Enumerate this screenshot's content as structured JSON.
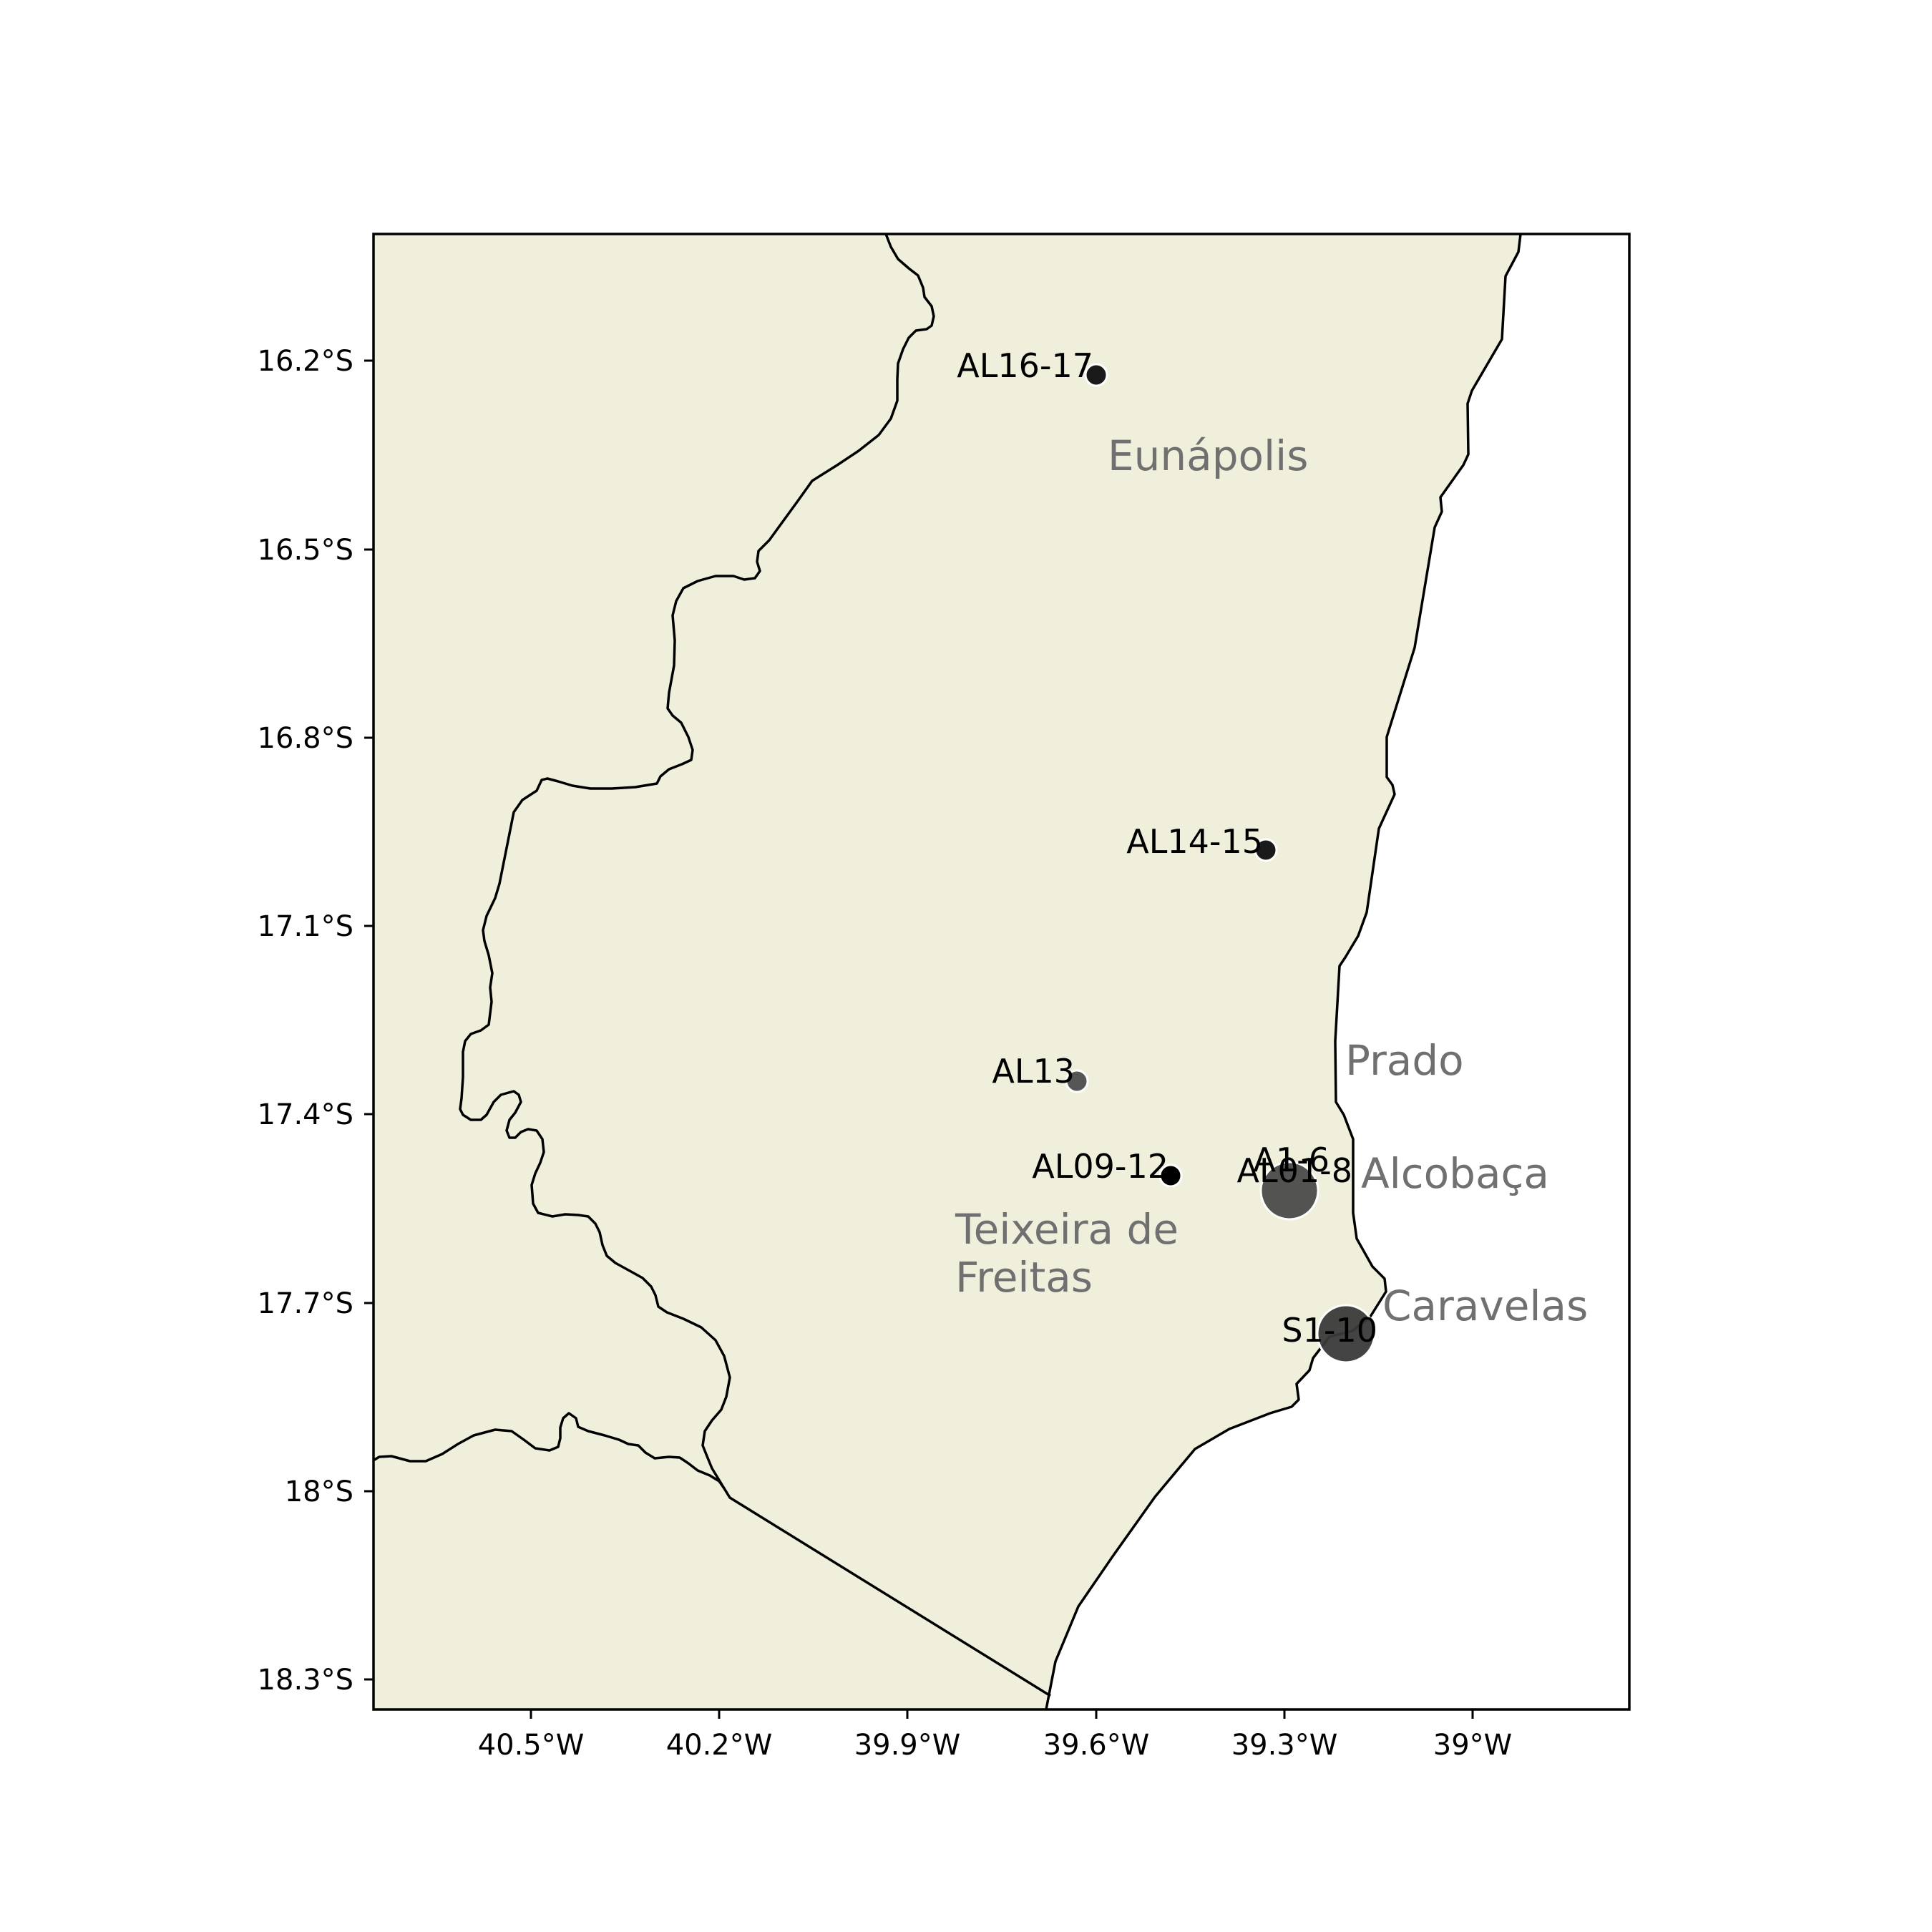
{
  "map": {
    "land_color": "#efefdb",
    "water_color": "#ffffff",
    "city_label_color": "#707070",
    "x_ticks": [
      "40.5°W",
      "40.2°W",
      "39.9°W",
      "39.6°W",
      "39.3°W",
      "39°W"
    ],
    "y_ticks": [
      "16.2°S",
      "16.5°S",
      "16.8°S",
      "17.1°S",
      "17.4°S",
      "17.7°S",
      "18°S",
      "18.3°S"
    ],
    "sites": [
      {
        "label": "AL16-17",
        "lon": -39.6,
        "lat": -16.22,
        "size": "small",
        "color": "#1a1a1a"
      },
      {
        "label": "AL14-15",
        "lon": -39.33,
        "lat": -16.98,
        "size": "small",
        "color": "#1a1a1a"
      },
      {
        "label": "AL13",
        "lon": -39.63,
        "lat": -17.35,
        "size": "small",
        "color": "#555555"
      },
      {
        "label": "AL09-12",
        "lon": -39.48,
        "lat": -17.5,
        "size": "small",
        "color": "#000000"
      },
      {
        "label": "A1-6",
        "lon": -39.3,
        "lat": -17.52,
        "size": "large",
        "color": "#4a4a4a"
      },
      {
        "label": "AL01-8",
        "lon": -39.3,
        "lat": -17.52,
        "size": "large",
        "color": "#4a4a4a"
      },
      {
        "label": "S1-10",
        "lon": -39.2,
        "lat": -17.75,
        "size": "large",
        "color": "#3a3a3a"
      }
    ],
    "cities": [
      {
        "name": "Eunápolis"
      },
      {
        "name": "Prado"
      },
      {
        "name": "Alcobaça"
      },
      {
        "name": "Teixeira de",
        "name_line2": "Freitas"
      },
      {
        "name": "Caravelas"
      }
    ]
  }
}
